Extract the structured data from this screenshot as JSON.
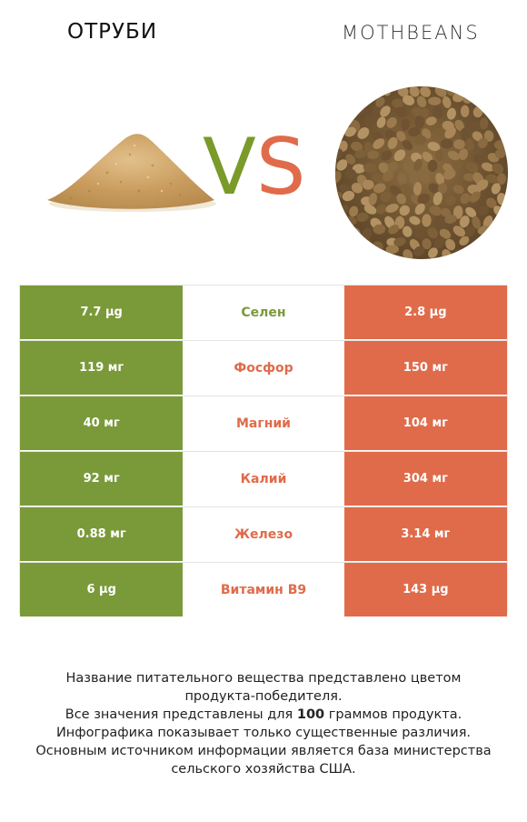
{
  "header": {
    "left_title": "ОТРУБИ",
    "right_title": "MOTHBEANS"
  },
  "vs": {
    "v": "V",
    "s": "S"
  },
  "colors": {
    "winner_left": "#7a9a3a",
    "winner_right": "#e06b4a"
  },
  "rows": [
    {
      "left": "7.7 µg",
      "nutrient": "Селен",
      "right": "2.8 µg",
      "winner": "left"
    },
    {
      "left": "119 мг",
      "nutrient": "Фосфор",
      "right": "150 мг",
      "winner": "right"
    },
    {
      "left": "40 мг",
      "nutrient": "Магний",
      "right": "104 мг",
      "winner": "right"
    },
    {
      "left": "92 мг",
      "nutrient": "Калий",
      "right": "304 мг",
      "winner": "right"
    },
    {
      "left": "0.88 мг",
      "nutrient": "Железо",
      "right": "3.14 мг",
      "winner": "right"
    },
    {
      "left": "6 µg",
      "nutrient": "Витамин B9",
      "right": "143 µg",
      "winner": "right"
    }
  ],
  "footer": {
    "line1": "Название питательного вещества представлено цветом",
    "line2": "продукта-победителя.",
    "line3_a": "Все значения представлены для ",
    "line3_b": "100",
    "line3_c": " граммов продукта.",
    "line4": "Инфографика показывает только существенные различия.",
    "line5": "Основным источником информации является база министерства",
    "line6": "сельского хозяйства США."
  }
}
